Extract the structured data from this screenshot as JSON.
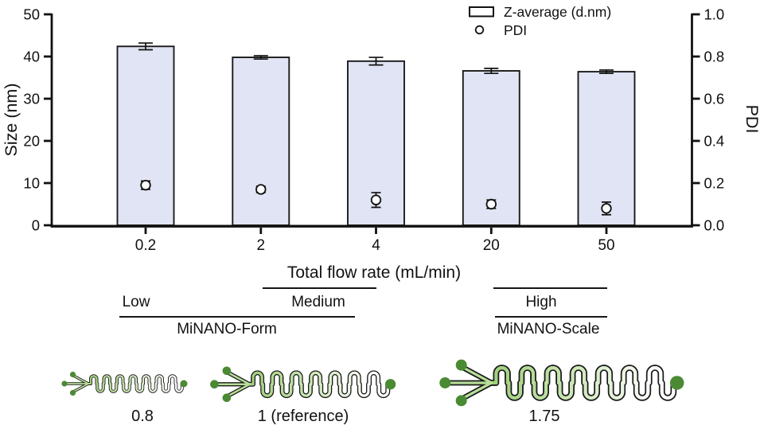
{
  "chart_data": {
    "type": "bar",
    "title": "",
    "categories": [
      "0.2",
      "2",
      "4",
      "20",
      "50"
    ],
    "xlabel": "Total flow rate (mL/min)",
    "series": [
      {
        "name": "Z-average (d.nm)",
        "type": "bar",
        "axis": "left",
        "values": [
          42.4,
          39.8,
          38.9,
          36.6,
          36.4
        ],
        "errors": [
          0.8,
          0.4,
          0.9,
          0.6,
          0.4
        ]
      },
      {
        "name": "PDI",
        "type": "scatter",
        "axis": "right",
        "values": [
          0.19,
          0.17,
          0.12,
          0.1,
          0.08
        ],
        "errors": [
          0.02,
          0.015,
          0.035,
          0.02,
          0.03
        ]
      }
    ],
    "left_axis": {
      "label": "Size (nm)",
      "lim": [
        0,
        50
      ],
      "ticks": [
        "0",
        "10",
        "20",
        "30",
        "40",
        "50"
      ]
    },
    "right_axis": {
      "label": "PDI",
      "lim": [
        0,
        1
      ],
      "ticks": [
        "0.0",
        "0.2",
        "0.4",
        "0.6",
        "0.8",
        "1.0"
      ]
    },
    "grid": false,
    "legend_position": "top-right",
    "legend": [
      {
        "marker": "open-bar",
        "label": "Z-average (d.nm)"
      },
      {
        "marker": "open-circle",
        "label": "PDI"
      }
    ]
  },
  "annotations": {
    "low_label": "Low",
    "medium_label": "Medium",
    "high_label": "High",
    "form_label": "MiNANO-Form",
    "scale_label": "MiNANO-Scale"
  },
  "chips": [
    {
      "label": "0.8",
      "size": "small"
    },
    {
      "label": "1 (reference)",
      "size": "medium"
    },
    {
      "label": "1.75",
      "size": "large"
    }
  ],
  "colors": {
    "bar_fill": "#e0e4f4",
    "bar_stroke": "#1a1a1a",
    "axis": "#111111",
    "chip_dot_green": "#4a8a33",
    "chip_fluid_green": "#b7dd97",
    "text": "#111111"
  }
}
